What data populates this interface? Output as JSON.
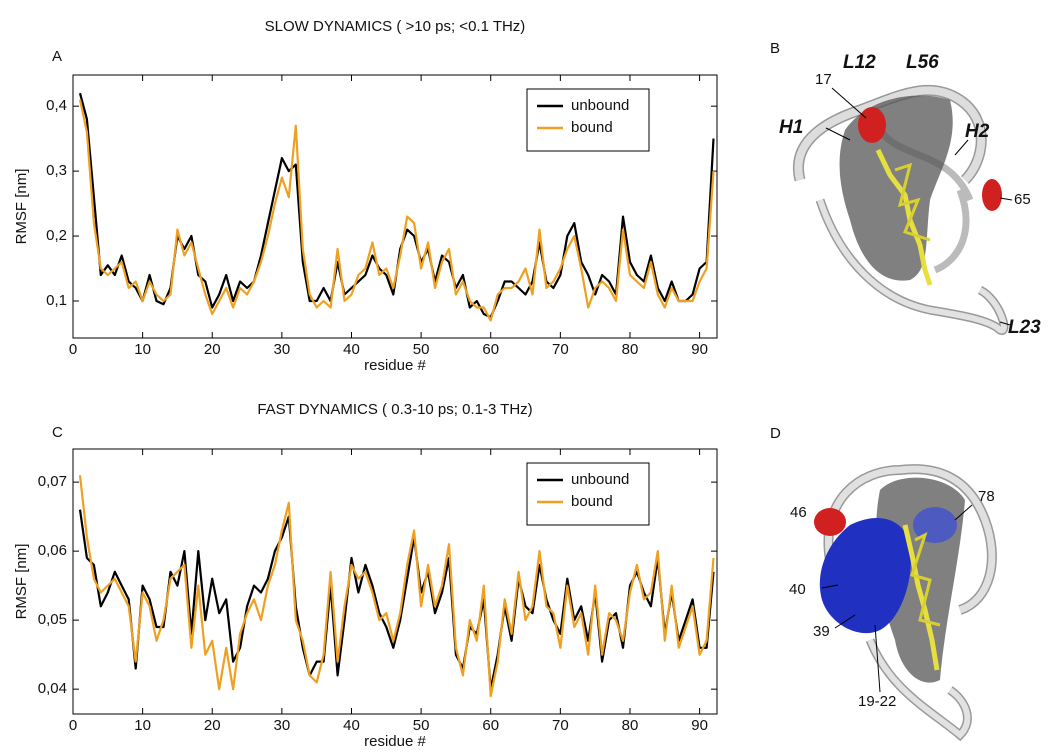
{
  "chart_data": [
    {
      "type": "line",
      "panel": "A",
      "title": "SLOW DYNAMICS ( >10 ps; <0.1 THz)",
      "xlabel": "residue #",
      "ylabel": "RMSF [nm]",
      "x": [
        1,
        2,
        3,
        4,
        5,
        6,
        7,
        8,
        9,
        10,
        11,
        12,
        13,
        14,
        15,
        16,
        17,
        18,
        19,
        20,
        21,
        22,
        23,
        24,
        25,
        26,
        27,
        28,
        29,
        30,
        31,
        32,
        33,
        34,
        35,
        36,
        37,
        38,
        39,
        40,
        41,
        42,
        43,
        44,
        45,
        46,
        47,
        48,
        49,
        50,
        51,
        52,
        53,
        54,
        55,
        56,
        57,
        58,
        59,
        60,
        61,
        62,
        63,
        64,
        65,
        66,
        67,
        68,
        69,
        70,
        71,
        72,
        73,
        74,
        75,
        76,
        77,
        78,
        79,
        80,
        81,
        82,
        83,
        84,
        85,
        86,
        87,
        88,
        89,
        90,
        91,
        92
      ],
      "series": [
        {
          "name": "unbound",
          "color": "#000000",
          "values": [
            0.42,
            0.38,
            0.26,
            0.14,
            0.155,
            0.14,
            0.17,
            0.13,
            0.12,
            0.1,
            0.14,
            0.1,
            0.095,
            0.12,
            0.2,
            0.18,
            0.2,
            0.14,
            0.13,
            0.09,
            0.11,
            0.14,
            0.1,
            0.13,
            0.12,
            0.13,
            0.17,
            0.22,
            0.27,
            0.32,
            0.3,
            0.31,
            0.16,
            0.1,
            0.1,
            0.12,
            0.1,
            0.16,
            0.11,
            0.12,
            0.13,
            0.14,
            0.17,
            0.15,
            0.14,
            0.11,
            0.18,
            0.21,
            0.2,
            0.16,
            0.18,
            0.13,
            0.17,
            0.16,
            0.12,
            0.14,
            0.09,
            0.1,
            0.08,
            0.075,
            0.1,
            0.13,
            0.13,
            0.12,
            0.11,
            0.13,
            0.19,
            0.13,
            0.12,
            0.14,
            0.2,
            0.22,
            0.16,
            0.14,
            0.11,
            0.14,
            0.13,
            0.11,
            0.23,
            0.16,
            0.14,
            0.13,
            0.17,
            0.12,
            0.1,
            0.13,
            0.1,
            0.1,
            0.11,
            0.15,
            0.16,
            0.35
          ]
        },
        {
          "name": "bound",
          "color": "#f0a020",
          "values": [
            0.41,
            0.36,
            0.22,
            0.15,
            0.14,
            0.15,
            0.16,
            0.12,
            0.13,
            0.1,
            0.13,
            0.11,
            0.1,
            0.11,
            0.21,
            0.17,
            0.19,
            0.15,
            0.11,
            0.08,
            0.1,
            0.12,
            0.09,
            0.12,
            0.11,
            0.13,
            0.16,
            0.2,
            0.25,
            0.29,
            0.26,
            0.37,
            0.18,
            0.11,
            0.09,
            0.1,
            0.09,
            0.18,
            0.1,
            0.11,
            0.14,
            0.15,
            0.19,
            0.14,
            0.15,
            0.12,
            0.17,
            0.23,
            0.22,
            0.15,
            0.19,
            0.12,
            0.16,
            0.18,
            0.11,
            0.13,
            0.1,
            0.09,
            0.09,
            0.07,
            0.11,
            0.12,
            0.12,
            0.13,
            0.15,
            0.11,
            0.21,
            0.12,
            0.13,
            0.15,
            0.18,
            0.2,
            0.15,
            0.09,
            0.12,
            0.13,
            0.12,
            0.1,
            0.21,
            0.14,
            0.13,
            0.12,
            0.16,
            0.11,
            0.09,
            0.12,
            0.1,
            0.1,
            0.1,
            0.13,
            0.15,
            0.3
          ]
        }
      ],
      "xlim": [
        0,
        92.5
      ],
      "xticks": [
        0,
        10,
        20,
        30,
        40,
        50,
        60,
        70,
        80,
        90
      ],
      "ylim": [
        0.043,
        0.448
      ],
      "yticks": [
        {
          "value": 0.1,
          "label": "0,1"
        },
        {
          "value": 0.2,
          "label": "0,2"
        },
        {
          "value": 0.3,
          "label": "0,3"
        },
        {
          "value": 0.4,
          "label": "0,4"
        }
      ],
      "legend": "upper right"
    },
    {
      "type": "line",
      "panel": "C",
      "title": "FAST DYNAMICS ( 0.3-10 ps; 0.1-3 THz)",
      "xlabel": "residue #",
      "ylabel": "RMSF [nm]",
      "x": [
        1,
        2,
        3,
        4,
        5,
        6,
        7,
        8,
        9,
        10,
        11,
        12,
        13,
        14,
        15,
        16,
        17,
        18,
        19,
        20,
        21,
        22,
        23,
        24,
        25,
        26,
        27,
        28,
        29,
        30,
        31,
        32,
        33,
        34,
        35,
        36,
        37,
        38,
        39,
        40,
        41,
        42,
        43,
        44,
        45,
        46,
        47,
        48,
        49,
        50,
        51,
        52,
        53,
        54,
        55,
        56,
        57,
        58,
        59,
        60,
        61,
        62,
        63,
        64,
        65,
        66,
        67,
        68,
        69,
        70,
        71,
        72,
        73,
        74,
        75,
        76,
        77,
        78,
        79,
        80,
        81,
        82,
        83,
        84,
        85,
        86,
        87,
        88,
        89,
        90,
        91,
        92
      ],
      "series": [
        {
          "name": "unbound",
          "color": "#000000",
          "values": [
            0.066,
            0.059,
            0.058,
            0.052,
            0.054,
            0.057,
            0.055,
            0.053,
            0.043,
            0.055,
            0.053,
            0.049,
            0.049,
            0.057,
            0.055,
            0.06,
            0.048,
            0.06,
            0.05,
            0.056,
            0.051,
            0.053,
            0.044,
            0.046,
            0.052,
            0.055,
            0.054,
            0.056,
            0.06,
            0.062,
            0.065,
            0.052,
            0.046,
            0.042,
            0.044,
            0.044,
            0.055,
            0.042,
            0.05,
            0.059,
            0.054,
            0.058,
            0.055,
            0.051,
            0.049,
            0.046,
            0.05,
            0.056,
            0.062,
            0.054,
            0.057,
            0.051,
            0.054,
            0.059,
            0.045,
            0.043,
            0.049,
            0.048,
            0.053,
            0.04,
            0.045,
            0.052,
            0.047,
            0.056,
            0.052,
            0.051,
            0.058,
            0.053,
            0.05,
            0.048,
            0.056,
            0.05,
            0.052,
            0.047,
            0.054,
            0.044,
            0.05,
            0.051,
            0.046,
            0.055,
            0.057,
            0.054,
            0.052,
            0.059,
            0.048,
            0.054,
            0.047,
            0.05,
            0.053,
            0.046,
            0.046,
            0.057
          ]
        },
        {
          "name": "bound",
          "color": "#f0a020",
          "values": [
            0.071,
            0.062,
            0.056,
            0.054,
            0.055,
            0.056,
            0.054,
            0.052,
            0.044,
            0.054,
            0.052,
            0.047,
            0.05,
            0.056,
            0.057,
            0.058,
            0.046,
            0.055,
            0.045,
            0.047,
            0.04,
            0.046,
            0.04,
            0.048,
            0.051,
            0.053,
            0.05,
            0.055,
            0.058,
            0.063,
            0.067,
            0.05,
            0.047,
            0.042,
            0.041,
            0.045,
            0.057,
            0.044,
            0.052,
            0.058,
            0.056,
            0.057,
            0.054,
            0.05,
            0.051,
            0.047,
            0.051,
            0.058,
            0.063,
            0.052,
            0.058,
            0.052,
            0.055,
            0.061,
            0.046,
            0.042,
            0.05,
            0.047,
            0.055,
            0.039,
            0.044,
            0.053,
            0.048,
            0.057,
            0.05,
            0.052,
            0.06,
            0.052,
            0.051,
            0.046,
            0.055,
            0.049,
            0.051,
            0.045,
            0.055,
            0.045,
            0.051,
            0.05,
            0.047,
            0.054,
            0.058,
            0.053,
            0.054,
            0.06,
            0.047,
            0.055,
            0.046,
            0.049,
            0.052,
            0.045,
            0.047,
            0.059
          ]
        }
      ],
      "xlim": [
        0,
        92.5
      ],
      "xticks": [
        0,
        10,
        20,
        30,
        40,
        50,
        60,
        70,
        80,
        90
      ],
      "ylim": [
        0.0364,
        0.0748
      ],
      "yticks": [
        {
          "value": 0.04,
          "label": "0,04"
        },
        {
          "value": 0.05,
          "label": "0,05"
        },
        {
          "value": 0.06,
          "label": "0,06"
        },
        {
          "value": 0.07,
          "label": "0,07"
        }
      ],
      "legend": "upper right"
    }
  ],
  "structures": [
    {
      "panel": "B",
      "annotations": [
        "L12",
        "L56",
        "H1",
        "H2",
        "17",
        "65",
        "L23"
      ]
    },
    {
      "panel": "D",
      "annotations": [
        "46",
        "78",
        "40",
        "39",
        "19-22"
      ]
    }
  ]
}
